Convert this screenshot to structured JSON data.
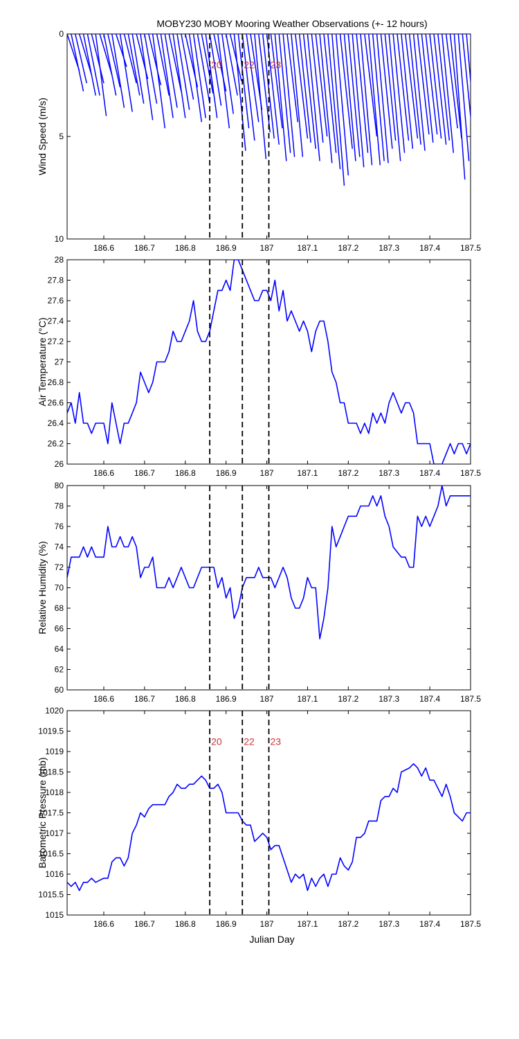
{
  "chart_data": [
    {
      "type": "line",
      "subtype": "wind-stick",
      "title": "MOBY230 MOBY Mooring Weather Observations (+- 12 hours)",
      "xlabel": "",
      "ylabel": "Wind Speed (m/s)",
      "xlim": [
        186.51,
        187.5
      ],
      "ylim": [
        0,
        10
      ],
      "y_reversed": true,
      "xticks": [
        "186.6",
        "186.7",
        "186.8",
        "186.9",
        "187",
        "187.1",
        "187.2",
        "187.3",
        "187.4",
        "187.5"
      ],
      "yticks": [
        "0",
        "5",
        "10"
      ],
      "line_color": "#0000ff",
      "markers": [
        {
          "x": 186.86,
          "label": "20"
        },
        {
          "x": 186.94,
          "label": "22"
        },
        {
          "x": 187.005,
          "label": "23"
        }
      ],
      "marker_label_y": 1.5,
      "series": [
        {
          "u": [
            1.5,
            1.5,
            1.4,
            1.5,
            1.5,
            1.5,
            1.5,
            1.3,
            1.5,
            1.5,
            1.5,
            1.5,
            1.3,
            1.5,
            1.5,
            1.4,
            1.4,
            1.4,
            1.5,
            1.5,
            1.5,
            1.5,
            1.5,
            1.5,
            1.5,
            1.5,
            1.5,
            1.5,
            1.5,
            1.5,
            1.5,
            1.5,
            1.5,
            1.4,
            1.4,
            1.4,
            1.5,
            1.4,
            1.4,
            1.4,
            1.4,
            1.4,
            1.3,
            1.5,
            1.5,
            1.4,
            1.4,
            1.4,
            1.4,
            1.5,
            1.4,
            1.4,
            1.4,
            1.4,
            1.3,
            1.4,
            1.5,
            1.4,
            1.5,
            1.5,
            1.4,
            1.4,
            1.5,
            1.5,
            1.5,
            1.5,
            1.5,
            1.5,
            1.4,
            1.4,
            1.4,
            1.4,
            1.4,
            1.5,
            1.4,
            1.4,
            1.4,
            1.4,
            1.3,
            1.4,
            1.4,
            1.4,
            1.4,
            1.5,
            1.4,
            1.4,
            1.4,
            1.4,
            1.4,
            1.4,
            1.5,
            1.4,
            1.4,
            1.4,
            1.4,
            1.3,
            1.3,
            1.4,
            1.3,
            1.3
          ],
          "v": [
            1.8,
            2.8,
            2.4,
            2.0,
            3.0,
            3.0,
            2.4,
            4.0,
            2.0,
            3.0,
            2.6,
            3.6,
            1.6,
            3.8,
            2.4,
            3.0,
            3.4,
            2.2,
            4.2,
            3.4,
            2.5,
            4.6,
            3.0,
            4.1,
            3.6,
            2.8,
            4.1,
            3.7,
            3.2,
            2.6,
            4.3,
            4.1,
            3.4,
            2.9,
            4.1,
            3.5,
            2.8,
            4.6,
            3.9,
            3.0,
            2.3,
            5.7,
            4.6,
            5.2,
            4.3,
            3.7,
            6.1,
            4.8,
            5.1,
            5.4,
            4.6,
            6.2,
            5.8,
            6.0,
            4.3,
            6.0,
            5.1,
            5.3,
            5.6,
            6.2,
            5.3,
            5.0,
            6.3,
            5.8,
            6.6,
            7.4,
            6.9,
            5.6,
            6.2,
            6.0,
            6.5,
            5.8,
            6.4,
            5.0,
            6.4,
            6.2,
            6.3,
            5.6,
            5.2,
            6.2,
            5.8,
            5.2,
            5.6,
            5.1,
            5.4,
            5.7,
            4.9,
            5.3,
            4.9,
            5.1,
            5.4,
            5.2,
            5.8,
            4.6,
            5.1,
            7.1,
            6.2,
            5.6,
            5.9,
            5.4
          ]
        }
      ]
    },
    {
      "type": "line",
      "title": "",
      "xlabel": "",
      "ylabel": "Air Temperature (°C)",
      "xlim": [
        186.51,
        187.5
      ],
      "ylim": [
        26,
        28
      ],
      "xticks": [
        "186.6",
        "186.7",
        "186.8",
        "186.9",
        "187",
        "187.1",
        "187.2",
        "187.3",
        "187.4",
        "187.5"
      ],
      "yticks": [
        "26",
        "26.2",
        "26.4",
        "26.6",
        "26.8",
        "27",
        "27.2",
        "27.4",
        "27.6",
        "27.8",
        "28"
      ],
      "line_color": "#0000ff",
      "markers": [
        {
          "x": 186.86,
          "label": ""
        },
        {
          "x": 186.94,
          "label": ""
        },
        {
          "x": 187.005,
          "label": ""
        }
      ],
      "series": [
        {
          "x": [
            186.51,
            186.52,
            186.53,
            186.54,
            186.55,
            186.56,
            186.57,
            186.58,
            186.59,
            186.6,
            186.61,
            186.62,
            186.63,
            186.64,
            186.65,
            186.66,
            186.67,
            186.68,
            186.69,
            186.7,
            186.71,
            186.72,
            186.73,
            186.74,
            186.75,
            186.76,
            186.77,
            186.78,
            186.79,
            186.8,
            186.81,
            186.82,
            186.83,
            186.84,
            186.85,
            186.86,
            186.87,
            186.88,
            186.89,
            186.9,
            186.91,
            186.92,
            186.93,
            186.94,
            186.95,
            186.96,
            186.97,
            186.98,
            186.99,
            187.0,
            187.01,
            187.02,
            187.03,
            187.04,
            187.05,
            187.06,
            187.07,
            187.08,
            187.09,
            187.1,
            187.11,
            187.12,
            187.13,
            187.14,
            187.15,
            187.16,
            187.17,
            187.18,
            187.19,
            187.2,
            187.21,
            187.22,
            187.23,
            187.24,
            187.25,
            187.26,
            187.27,
            187.28,
            187.29,
            187.3,
            187.31,
            187.32,
            187.33,
            187.34,
            187.35,
            187.36,
            187.37,
            187.38,
            187.39,
            187.4,
            187.41,
            187.42,
            187.43,
            187.44,
            187.45,
            187.46,
            187.47,
            187.48,
            187.49,
            187.5
          ],
          "y": [
            26.5,
            26.6,
            26.4,
            26.7,
            26.4,
            26.4,
            26.3,
            26.4,
            26.4,
            26.4,
            26.2,
            26.6,
            26.4,
            26.2,
            26.4,
            26.4,
            26.5,
            26.6,
            26.9,
            26.8,
            26.7,
            26.8,
            27.0,
            27.0,
            27.0,
            27.1,
            27.3,
            27.2,
            27.2,
            27.3,
            27.4,
            27.6,
            27.3,
            27.2,
            27.2,
            27.3,
            27.5,
            27.7,
            27.7,
            27.8,
            27.7,
            28.0,
            28.0,
            27.9,
            27.8,
            27.7,
            27.6,
            27.6,
            27.7,
            27.7,
            27.6,
            27.8,
            27.5,
            27.7,
            27.4,
            27.5,
            27.4,
            27.3,
            27.4,
            27.3,
            27.1,
            27.3,
            27.4,
            27.4,
            27.2,
            26.9,
            26.8,
            26.6,
            26.6,
            26.4,
            26.4,
            26.4,
            26.3,
            26.4,
            26.3,
            26.5,
            26.4,
            26.5,
            26.4,
            26.6,
            26.7,
            26.6,
            26.5,
            26.6,
            26.6,
            26.5,
            26.2,
            26.2,
            26.2,
            26.2,
            26.0,
            26.0,
            26.0,
            26.1,
            26.2,
            26.1,
            26.2,
            26.2,
            26.1,
            26.2
          ]
        }
      ]
    },
    {
      "type": "line",
      "title": "",
      "xlabel": "",
      "ylabel": "Relative Humidity (%)",
      "xlim": [
        186.51,
        187.5
      ],
      "ylim": [
        60,
        80
      ],
      "xticks": [
        "186.6",
        "186.7",
        "186.8",
        "186.9",
        "187",
        "187.1",
        "187.2",
        "187.3",
        "187.4",
        "187.5"
      ],
      "yticks": [
        "60",
        "62",
        "64",
        "66",
        "68",
        "70",
        "72",
        "74",
        "76",
        "78",
        "80"
      ],
      "line_color": "#0000ff",
      "markers": [
        {
          "x": 186.86,
          "label": ""
        },
        {
          "x": 186.94,
          "label": ""
        },
        {
          "x": 187.005,
          "label": ""
        }
      ],
      "series": [
        {
          "x": [
            186.51,
            186.52,
            186.53,
            186.54,
            186.55,
            186.56,
            186.57,
            186.58,
            186.59,
            186.6,
            186.61,
            186.62,
            186.63,
            186.64,
            186.65,
            186.66,
            186.67,
            186.68,
            186.69,
            186.7,
            186.71,
            186.72,
            186.73,
            186.74,
            186.75,
            186.76,
            186.77,
            186.78,
            186.79,
            186.8,
            186.81,
            186.82,
            186.83,
            186.84,
            186.85,
            186.86,
            186.87,
            186.88,
            186.89,
            186.9,
            186.91,
            186.92,
            186.93,
            186.94,
            186.95,
            186.96,
            186.97,
            186.98,
            186.99,
            187.0,
            187.01,
            187.02,
            187.03,
            187.04,
            187.05,
            187.06,
            187.07,
            187.08,
            187.09,
            187.1,
            187.11,
            187.12,
            187.13,
            187.14,
            187.15,
            187.16,
            187.17,
            187.18,
            187.19,
            187.2,
            187.21,
            187.22,
            187.23,
            187.24,
            187.25,
            187.26,
            187.27,
            187.28,
            187.29,
            187.3,
            187.31,
            187.32,
            187.33,
            187.34,
            187.35,
            187.36,
            187.37,
            187.38,
            187.39,
            187.4,
            187.41,
            187.42,
            187.43,
            187.44,
            187.45,
            187.46,
            187.47,
            187.48,
            187.49,
            187.5
          ],
          "y": [
            71,
            73,
            73,
            73,
            74,
            73,
            74,
            73,
            73,
            73,
            76,
            74,
            74,
            75,
            74,
            74,
            75,
            74,
            71,
            72,
            72,
            73,
            70,
            70,
            70,
            71,
            70,
            71,
            72,
            71,
            70,
            70,
            71,
            72,
            72,
            72,
            72,
            70,
            71,
            69,
            70,
            67,
            68,
            70,
            71,
            71,
            71,
            72,
            71,
            71,
            71,
            70,
            71,
            72,
            71,
            69,
            68,
            68,
            69,
            71,
            70,
            70,
            65,
            67,
            70,
            76,
            74,
            75,
            76,
            77,
            77,
            77,
            78,
            78,
            78,
            79,
            78,
            79,
            77,
            76,
            74,
            73.5,
            73,
            73,
            72,
            72,
            77,
            76,
            77,
            76,
            77,
            78,
            80,
            78,
            79,
            79,
            79,
            79,
            79,
            79
          ]
        }
      ]
    },
    {
      "type": "line",
      "title": "",
      "xlabel": "Julian Day",
      "ylabel": "Barometric Pressure (mb)",
      "xlim": [
        186.51,
        187.5
      ],
      "ylim": [
        1015,
        1020
      ],
      "xticks": [
        "186.6",
        "186.7",
        "186.8",
        "186.9",
        "187",
        "187.1",
        "187.2",
        "187.3",
        "187.4",
        "187.5"
      ],
      "yticks": [
        "1015",
        "1015.5",
        "1016",
        "1016.5",
        "1017",
        "1017.5",
        "1018",
        "1018.5",
        "1019",
        "1019.5",
        "1020"
      ],
      "line_color": "#0000ff",
      "markers": [
        {
          "x": 186.86,
          "label": "20"
        },
        {
          "x": 186.94,
          "label": "22"
        },
        {
          "x": 187.005,
          "label": "23"
        }
      ],
      "marker_label_y": 1019.25,
      "series": [
        {
          "x": [
            186.51,
            186.52,
            186.53,
            186.54,
            186.55,
            186.56,
            186.57,
            186.58,
            186.59,
            186.6,
            186.61,
            186.62,
            186.63,
            186.64,
            186.65,
            186.66,
            186.67,
            186.68,
            186.69,
            186.7,
            186.71,
            186.72,
            186.73,
            186.74,
            186.75,
            186.76,
            186.77,
            186.78,
            186.79,
            186.8,
            186.81,
            186.82,
            186.83,
            186.84,
            186.85,
            186.86,
            186.87,
            186.88,
            186.89,
            186.9,
            186.91,
            186.92,
            186.93,
            186.94,
            186.95,
            186.96,
            186.97,
            186.98,
            186.99,
            187.0,
            187.01,
            187.02,
            187.03,
            187.04,
            187.05,
            187.06,
            187.07,
            187.08,
            187.09,
            187.1,
            187.11,
            187.12,
            187.13,
            187.14,
            187.15,
            187.16,
            187.17,
            187.18,
            187.19,
            187.2,
            187.21,
            187.22,
            187.23,
            187.24,
            187.25,
            187.26,
            187.27,
            187.28,
            187.29,
            187.3,
            187.31,
            187.32,
            187.33,
            187.34,
            187.35,
            187.36,
            187.37,
            187.38,
            187.39,
            187.4,
            187.41,
            187.42,
            187.43,
            187.44,
            187.45,
            187.46,
            187.47,
            187.48,
            187.49,
            187.5
          ],
          "y": [
            1015.8,
            1015.7,
            1015.8,
            1015.6,
            1015.8,
            1015.8,
            1015.9,
            1015.8,
            1015.85,
            1015.9,
            1015.9,
            1016.3,
            1016.4,
            1016.4,
            1016.2,
            1016.4,
            1017.0,
            1017.2,
            1017.5,
            1017.4,
            1017.6,
            1017.7,
            1017.7,
            1017.7,
            1017.7,
            1017.9,
            1018.0,
            1018.2,
            1018.1,
            1018.1,
            1018.2,
            1018.2,
            1018.3,
            1018.4,
            1018.3,
            1018.1,
            1018.1,
            1018.2,
            1018.0,
            1017.5,
            1017.5,
            1017.5,
            1017.5,
            1017.3,
            1017.2,
            1017.2,
            1016.8,
            1016.9,
            1017.0,
            1016.9,
            1016.6,
            1016.7,
            1016.7,
            1016.4,
            1016.1,
            1015.8,
            1016.0,
            1015.9,
            1016.0,
            1015.6,
            1015.9,
            1015.7,
            1015.9,
            1016.0,
            1015.7,
            1016.0,
            1016.0,
            1016.4,
            1016.2,
            1016.1,
            1016.3,
            1016.9,
            1016.9,
            1017.0,
            1017.3,
            1017.3,
            1017.3,
            1017.8,
            1017.9,
            1017.9,
            1018.1,
            1018.0,
            1018.5,
            1018.55,
            1018.6,
            1018.7,
            1018.6,
            1018.4,
            1018.6,
            1018.3,
            1018.3,
            1018.1,
            1017.9,
            1018.2,
            1017.9,
            1017.5,
            1017.4,
            1017.3,
            1017.5,
            1017.5
          ]
        }
      ]
    }
  ],
  "colors": {
    "series": "#0000ff",
    "marker_line": "#000000",
    "marker_label": "#cc3333",
    "axes": "#000000",
    "background": "#ffffff"
  }
}
